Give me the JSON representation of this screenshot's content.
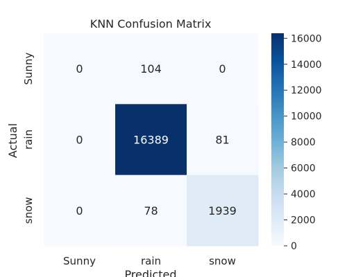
{
  "chart_data": {
    "type": "heatmap",
    "title": "KNN Confusion Matrix",
    "xlabel": "Predicted",
    "ylabel": "Actual",
    "x_categories": [
      "Sunny",
      "rain",
      "snow"
    ],
    "y_categories": [
      "Sunny",
      "rain",
      "snow"
    ],
    "matrix": [
      [
        0,
        104,
        0
      ],
      [
        0,
        16389,
        81
      ],
      [
        0,
        78,
        1939
      ]
    ],
    "colormap": "Blues",
    "colorbar": {
      "range": [
        0,
        16389
      ],
      "ticks": [
        0,
        2000,
        4000,
        6000,
        8000,
        10000,
        12000,
        14000,
        16000
      ]
    },
    "colors": {
      "min": "#f7fbff",
      "max": "#08306b",
      "annotation_dark": "#262626",
      "annotation_light": "#ffffff"
    }
  }
}
